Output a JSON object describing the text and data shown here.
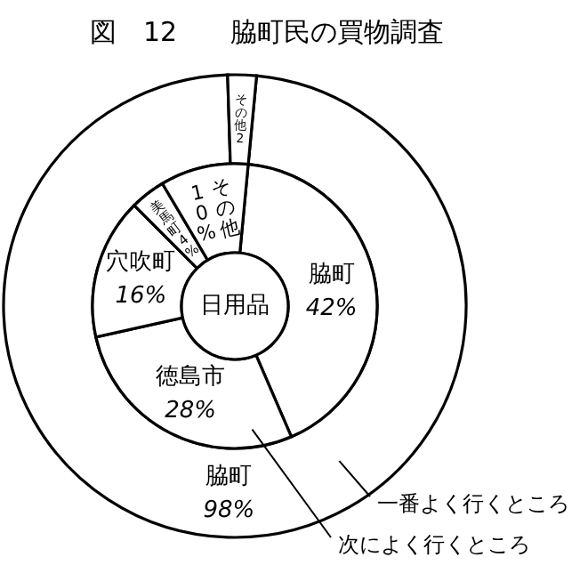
{
  "chart_data": [
    {
      "type": "donut",
      "title": "図　12　　脇町民の買物調査",
      "categories": [
        "脇町",
        "その他"
      ],
      "values": [
        98,
        2
      ],
      "value_labels": [
        "98%",
        "2"
      ],
      "colors": [
        "#ffffff",
        "#ffffff"
      ],
      "annotations": [
        "一番よく行くところ"
      ]
    },
    {
      "type": "donut",
      "title": "日用品",
      "categories": [
        "脇町",
        "徳島市",
        "穴吹町",
        "美馬町",
        "その他"
      ],
      "values": [
        42,
        28,
        16,
        4,
        10
      ],
      "value_labels": [
        "42%",
        "28%",
        "16%",
        "4%",
        "10%"
      ],
      "colors": [
        "#ffffff",
        "#ffffff",
        "#ffffff",
        "#ffffff",
        "#ffffff"
      ],
      "annotations": [
        "次によく行くところ"
      ]
    }
  ]
}
